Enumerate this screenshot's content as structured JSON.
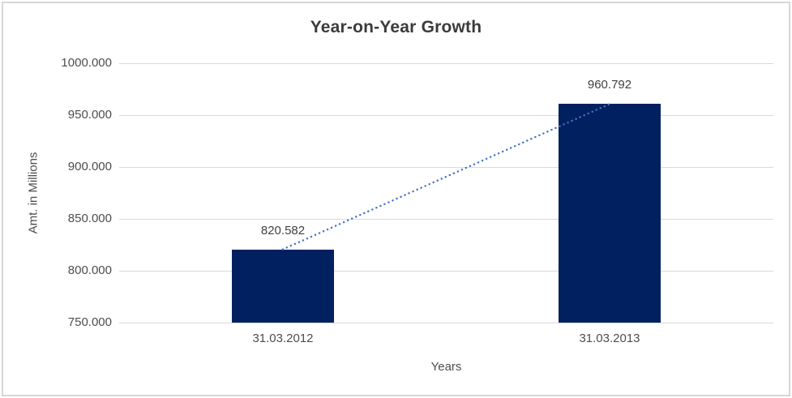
{
  "chart": {
    "title": "Year-on-Year Growth",
    "x_axis_title": "Years",
    "y_axis_title": "Amt. in Millions"
  },
  "chart_data": {
    "type": "bar",
    "title": "Year-on-Year Growth",
    "xlabel": "Years",
    "ylabel": "Amt. in Millions",
    "categories": [
      "31.03.2012",
      "31.03.2013"
    ],
    "values": [
      820.582,
      960.792
    ],
    "value_labels": [
      "820.582",
      "960.792"
    ],
    "ylim": [
      750,
      1000
    ],
    "yticks": [
      750,
      800,
      850,
      900,
      950,
      1000
    ],
    "ytick_labels": [
      "750.000",
      "800.000",
      "850.000",
      "900.000",
      "950.000",
      "1000.000"
    ],
    "grid": true,
    "legend": "none",
    "trendline": {
      "type": "linear",
      "style": "dotted"
    },
    "colors": {
      "bar": "#002060",
      "trendline": "#4472C4",
      "gridline": "#d9d9d9",
      "title_text": "#3b3b3b",
      "axis_text": "#4d4d4d",
      "frame_border": "#d7d7d7"
    }
  }
}
